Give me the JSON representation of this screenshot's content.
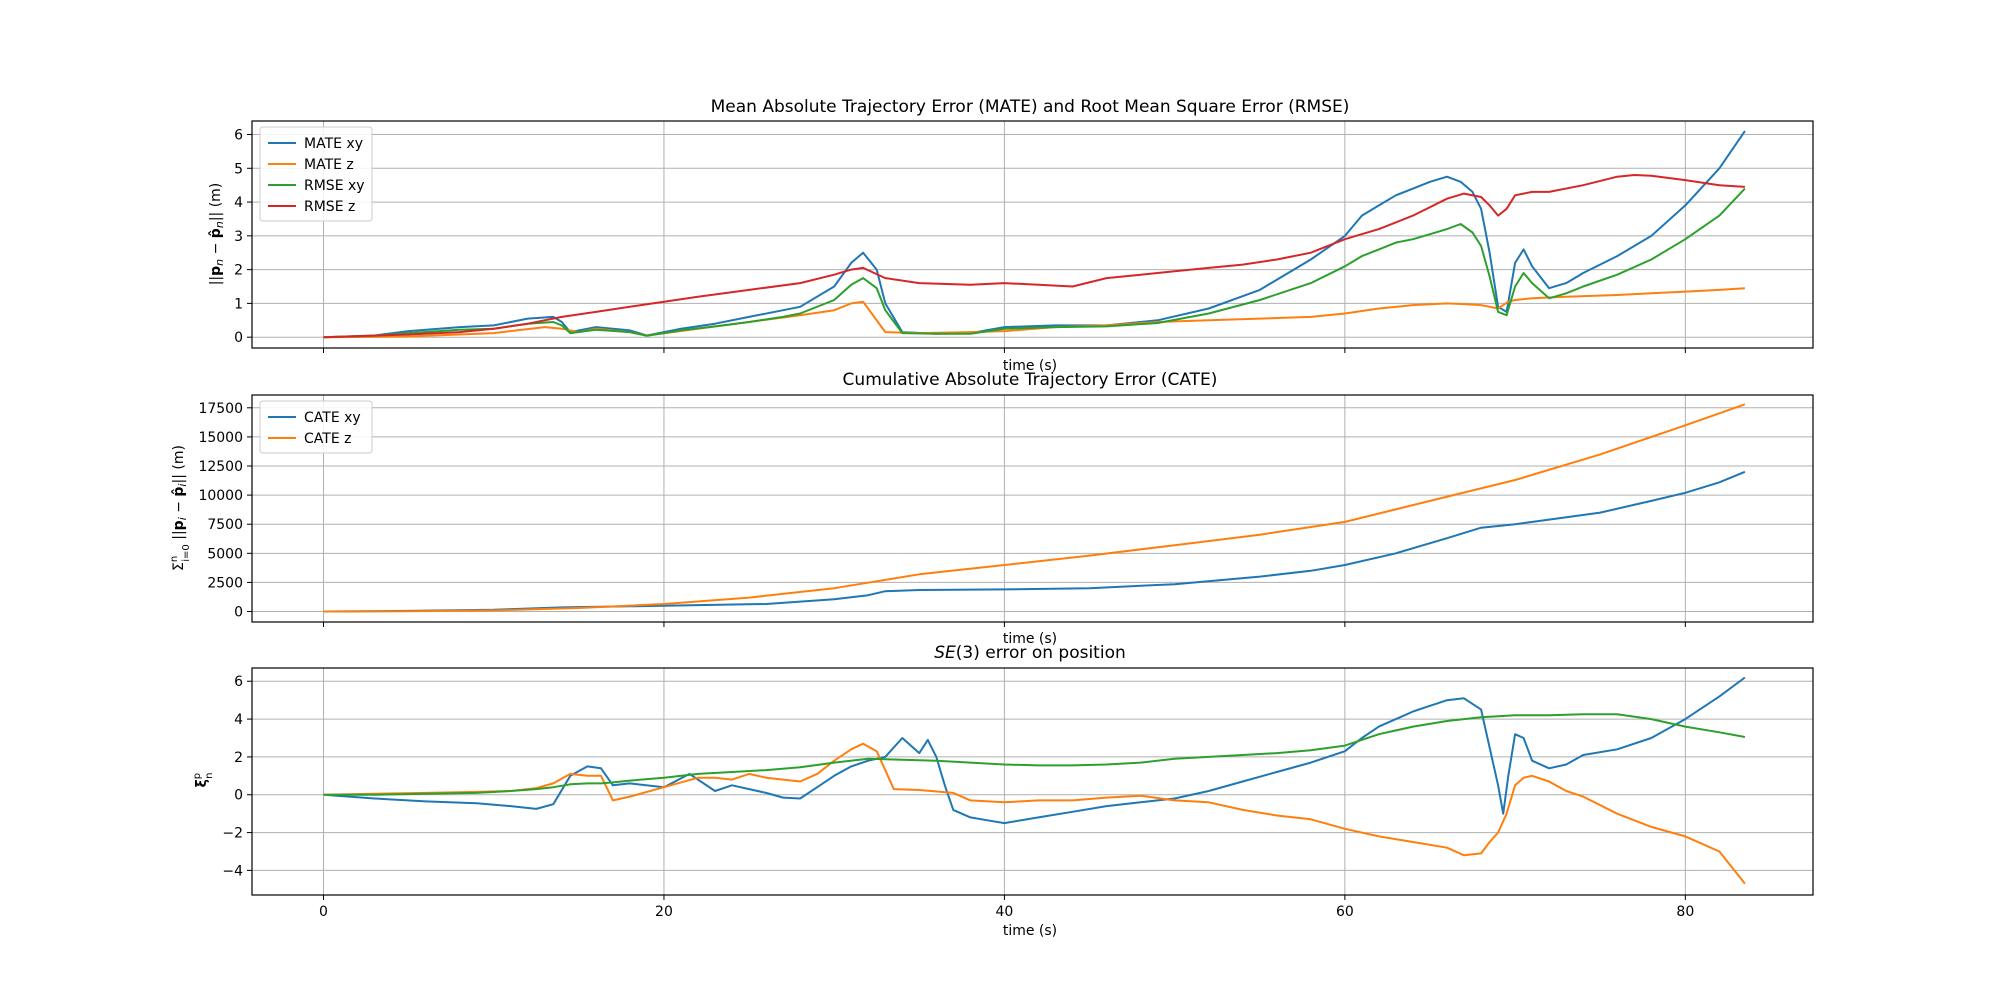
{
  "chart_data": [
    {
      "type": "line",
      "title": "Mean Absolute Trajectory Error (MATE) and Root Mean Square Error (RMSE)",
      "xlabel": "time (s)",
      "ylabel": "||p_n − p̂_n|| (m)",
      "xlim": [
        -4.2,
        87.5
      ],
      "ylim": [
        -0.32,
        6.4
      ],
      "xticks": [
        0,
        20,
        40,
        60,
        80
      ],
      "xtick_labels_visible": false,
      "yticks": [
        0,
        1,
        2,
        3,
        4,
        5,
        6
      ],
      "grid": true,
      "legend": "upper-left",
      "series": [
        {
          "name": "MATE xy",
          "color": "#1f77b4",
          "x": [
            0,
            3,
            5,
            8,
            10,
            12,
            13.5,
            14,
            14.5,
            16,
            18,
            19,
            21,
            23,
            25,
            27,
            28,
            30,
            31,
            31.7,
            32.5,
            33,
            34,
            36,
            38,
            40,
            43,
            46,
            49,
            52,
            55,
            58,
            60,
            61,
            62,
            63,
            64,
            65,
            66,
            66.8,
            67.5,
            68,
            68.5,
            69,
            69.5,
            70,
            70.5,
            71,
            72,
            73,
            74,
            76,
            78,
            80,
            82,
            83.5
          ],
          "y": [
            0,
            0.05,
            0.18,
            0.3,
            0.35,
            0.55,
            0.6,
            0.45,
            0.15,
            0.3,
            0.2,
            0.05,
            0.25,
            0.4,
            0.6,
            0.8,
            0.9,
            1.5,
            2.2,
            2.5,
            2.0,
            1.0,
            0.15,
            0.1,
            0.12,
            0.3,
            0.35,
            0.35,
            0.5,
            0.85,
            1.4,
            2.3,
            3.0,
            3.6,
            3.9,
            4.2,
            4.4,
            4.6,
            4.75,
            4.6,
            4.3,
            3.8,
            2.5,
            0.9,
            0.75,
            2.2,
            2.6,
            2.1,
            1.45,
            1.6,
            1.9,
            2.4,
            3.0,
            3.9,
            5.0,
            6.1
          ]
        },
        {
          "name": "MATE z",
          "color": "#ff7f0e",
          "x": [
            0,
            5,
            10,
            13,
            14,
            15,
            16,
            18,
            19,
            22,
            25,
            28,
            30,
            31,
            31.7,
            33,
            35,
            38,
            40,
            43,
            46,
            49,
            52,
            55,
            58,
            60,
            62,
            64,
            66,
            67,
            68,
            68.5,
            69,
            69.3,
            69.6,
            70,
            71,
            73,
            76,
            78,
            80,
            82,
            83.5
          ],
          "y": [
            0,
            0.02,
            0.12,
            0.3,
            0.25,
            0.15,
            0.25,
            0.15,
            0.05,
            0.25,
            0.45,
            0.65,
            0.8,
            1.0,
            1.05,
            0.15,
            0.12,
            0.15,
            0.18,
            0.3,
            0.35,
            0.45,
            0.5,
            0.55,
            0.6,
            0.7,
            0.85,
            0.95,
            1.0,
            0.98,
            0.95,
            0.9,
            0.85,
            0.95,
            1.05,
            1.1,
            1.15,
            1.2,
            1.25,
            1.3,
            1.35,
            1.4,
            1.45
          ]
        },
        {
          "name": "RMSE xy",
          "color": "#2ca02c",
          "x": [
            0,
            3,
            5,
            8,
            10,
            12,
            13.5,
            14,
            14.5,
            16,
            18,
            19,
            21,
            23,
            25,
            27,
            28,
            30,
            31,
            31.7,
            32.5,
            33,
            34,
            36,
            38,
            40,
            43,
            46,
            49,
            52,
            55,
            58,
            60,
            61,
            62,
            63,
            64,
            65,
            66,
            66.8,
            67.5,
            68,
            68.5,
            69,
            69.5,
            70,
            70.5,
            71,
            72,
            73,
            74,
            76,
            78,
            80,
            82,
            83.5
          ],
          "y": [
            0,
            0.04,
            0.12,
            0.22,
            0.25,
            0.4,
            0.45,
            0.35,
            0.12,
            0.22,
            0.15,
            0.04,
            0.2,
            0.32,
            0.45,
            0.6,
            0.7,
            1.1,
            1.55,
            1.75,
            1.45,
            0.8,
            0.12,
            0.1,
            0.1,
            0.25,
            0.3,
            0.32,
            0.42,
            0.7,
            1.1,
            1.6,
            2.1,
            2.4,
            2.6,
            2.8,
            2.9,
            3.05,
            3.2,
            3.35,
            3.1,
            2.7,
            1.8,
            0.75,
            0.65,
            1.5,
            1.9,
            1.6,
            1.15,
            1.3,
            1.5,
            1.85,
            2.3,
            2.9,
            3.6,
            4.4
          ]
        },
        {
          "name": "RMSE z",
          "color": "#d62728",
          "x": [
            0,
            5,
            8,
            10,
            12,
            14,
            16,
            18,
            20,
            22,
            25,
            28,
            30,
            31,
            31.7,
            33,
            35,
            38,
            40,
            42,
            44,
            46,
            48,
            50,
            52,
            54,
            56,
            58,
            60,
            62,
            64,
            66,
            67,
            68,
            68.5,
            69,
            69.5,
            70,
            71,
            72,
            74,
            76,
            77,
            78,
            80,
            82,
            83.5
          ],
          "y": [
            0,
            0.08,
            0.15,
            0.25,
            0.4,
            0.6,
            0.75,
            0.9,
            1.05,
            1.2,
            1.4,
            1.6,
            1.85,
            2.0,
            2.05,
            1.75,
            1.6,
            1.55,
            1.6,
            1.55,
            1.5,
            1.75,
            1.85,
            1.95,
            2.05,
            2.15,
            2.3,
            2.5,
            2.9,
            3.2,
            3.6,
            4.1,
            4.25,
            4.15,
            3.9,
            3.6,
            3.8,
            4.2,
            4.3,
            4.3,
            4.5,
            4.75,
            4.8,
            4.78,
            4.65,
            4.5,
            4.45
          ]
        }
      ]
    },
    {
      "type": "line",
      "title": "Cumulative Absolute Trajectory Error (CATE)",
      "xlabel": "time (s)",
      "ylabel": "Σ_{i=0}^{n} ||p_i − p̂_i|| (m)",
      "xlim": [
        -4.2,
        87.5
      ],
      "ylim": [
        -900,
        18600
      ],
      "xticks": [
        0,
        20,
        40,
        60,
        80
      ],
      "xtick_labels_visible": false,
      "yticks": [
        0,
        2500,
        5000,
        7500,
        10000,
        12500,
        15000,
        17500
      ],
      "grid": true,
      "legend": "upper-left",
      "series": [
        {
          "name": "CATE xy",
          "color": "#1f77b4",
          "x": [
            0,
            5,
            10,
            14,
            18,
            22,
            26,
            30,
            32,
            33,
            35,
            40,
            45,
            50,
            55,
            58,
            60,
            63,
            66,
            68,
            70,
            72,
            75,
            78,
            80,
            82,
            83.5
          ],
          "y": [
            0,
            50,
            150,
            350,
            450,
            550,
            650,
            1050,
            1400,
            1750,
            1850,
            1900,
            2000,
            2350,
            3000,
            3500,
            4000,
            5000,
            6300,
            7200,
            7500,
            7900,
            8500,
            9500,
            10200,
            11100,
            12000
          ]
        },
        {
          "name": "CATE z",
          "color": "#ff7f0e",
          "x": [
            0,
            5,
            10,
            15,
            20,
            25,
            30,
            35,
            40,
            45,
            50,
            55,
            60,
            65,
            70,
            75,
            80,
            83.5
          ],
          "y": [
            0,
            20,
            100,
            300,
            650,
            1200,
            2000,
            3200,
            4000,
            4800,
            5700,
            6600,
            7700,
            9500,
            11300,
            13500,
            16000,
            17800
          ]
        }
      ]
    },
    {
      "type": "line",
      "title": "SE(3) error on position",
      "xlabel": "time (s)",
      "ylabel": "ξ_n^p",
      "xlim": [
        -4.2,
        87.5
      ],
      "ylim": [
        -5.3,
        6.7
      ],
      "xticks": [
        0,
        20,
        40,
        60,
        80
      ],
      "xtick_labels": [
        "0",
        "20",
        "40",
        "60",
        "80"
      ],
      "yticks": [
        -4,
        -2,
        0,
        2,
        4,
        6
      ],
      "grid": true,
      "legend": "none",
      "series": [
        {
          "color": "#1f77b4",
          "x": [
            0,
            3,
            6,
            9,
            11,
            12.5,
            13.5,
            14.5,
            15.5,
            16.3,
            17,
            18,
            20,
            21.5,
            23,
            24,
            25,
            26,
            27,
            28,
            29,
            30,
            31,
            32,
            33,
            34,
            35,
            35.5,
            36,
            36.5,
            37,
            38,
            39,
            40,
            42,
            44,
            46,
            48,
            50,
            52,
            54,
            56,
            58,
            60,
            61,
            62,
            63,
            64,
            65,
            66,
            67,
            68,
            68.5,
            69,
            69.3,
            69.6,
            70,
            70.5,
            71,
            72,
            73,
            74,
            76,
            78,
            80,
            82,
            83.5
          ],
          "y": [
            0,
            -0.2,
            -0.35,
            -0.45,
            -0.6,
            -0.75,
            -0.5,
            1.0,
            1.5,
            1.4,
            0.5,
            0.6,
            0.4,
            1.1,
            0.2,
            0.5,
            0.3,
            0.1,
            -0.15,
            -0.2,
            0.4,
            1.0,
            1.5,
            1.8,
            2.0,
            3.0,
            2.2,
            2.9,
            2.0,
            0.5,
            -0.8,
            -1.2,
            -1.35,
            -1.5,
            -1.2,
            -0.9,
            -0.6,
            -0.4,
            -0.2,
            0.2,
            0.7,
            1.2,
            1.7,
            2.3,
            3.0,
            3.6,
            4.0,
            4.4,
            4.7,
            5.0,
            5.1,
            4.5,
            2.5,
            0.5,
            -1.0,
            1.0,
            3.2,
            3.0,
            1.8,
            1.4,
            1.6,
            2.1,
            2.4,
            3.0,
            4.0,
            5.2,
            6.2
          ]
        },
        {
          "color": "#ff7f0e",
          "x": [
            0,
            3,
            6,
            9,
            11,
            12.5,
            13.5,
            14.5,
            15.5,
            16.3,
            17,
            18,
            20,
            22,
            23,
            24,
            25,
            26,
            27,
            28,
            29,
            30,
            31,
            31.7,
            32.5,
            33.5,
            35,
            37,
            38,
            40,
            42,
            44,
            46,
            48,
            50,
            52,
            54,
            56,
            58,
            60,
            62,
            64,
            66,
            67,
            68,
            68.5,
            69,
            69.5,
            70,
            70.5,
            71,
            72,
            73,
            74,
            76,
            78,
            80,
            82,
            83.5
          ],
          "y": [
            0,
            0.05,
            0.1,
            0.15,
            0.2,
            0.35,
            0.6,
            1.1,
            1.0,
            1.0,
            -0.3,
            -0.1,
            0.4,
            0.9,
            0.9,
            0.8,
            1.1,
            0.9,
            0.8,
            0.7,
            1.1,
            1.8,
            2.4,
            2.7,
            2.3,
            0.3,
            0.25,
            0.1,
            -0.3,
            -0.4,
            -0.3,
            -0.3,
            -0.15,
            -0.05,
            -0.3,
            -0.4,
            -0.8,
            -1.1,
            -1.3,
            -1.8,
            -2.2,
            -2.5,
            -2.8,
            -3.2,
            -3.1,
            -2.5,
            -2.0,
            -1.0,
            0.5,
            0.9,
            1.0,
            0.7,
            0.2,
            -0.1,
            -1.0,
            -1.7,
            -2.2,
            -3.0,
            -4.7
          ]
        },
        {
          "color": "#2ca02c",
          "x": [
            0,
            3,
            6,
            9,
            11,
            12.5,
            13.5,
            14.5,
            15.5,
            16.3,
            17,
            18,
            20,
            22,
            24,
            26,
            28,
            30,
            32,
            34,
            36,
            38,
            40,
            42,
            44,
            46,
            48,
            50,
            52,
            54,
            56,
            58,
            60,
            62,
            64,
            66,
            68,
            70,
            72,
            74,
            76,
            78,
            80,
            82,
            83.5
          ],
          "y": [
            0,
            0,
            0.05,
            0.1,
            0.2,
            0.3,
            0.4,
            0.55,
            0.6,
            0.6,
            0.65,
            0.75,
            0.9,
            1.1,
            1.2,
            1.3,
            1.45,
            1.7,
            1.9,
            1.85,
            1.8,
            1.7,
            1.6,
            1.55,
            1.55,
            1.6,
            1.7,
            1.9,
            2.0,
            2.1,
            2.2,
            2.35,
            2.6,
            3.2,
            3.6,
            3.9,
            4.1,
            4.2,
            4.2,
            4.25,
            4.25,
            4.0,
            3.6,
            3.3,
            3.05
          ]
        }
      ]
    }
  ]
}
